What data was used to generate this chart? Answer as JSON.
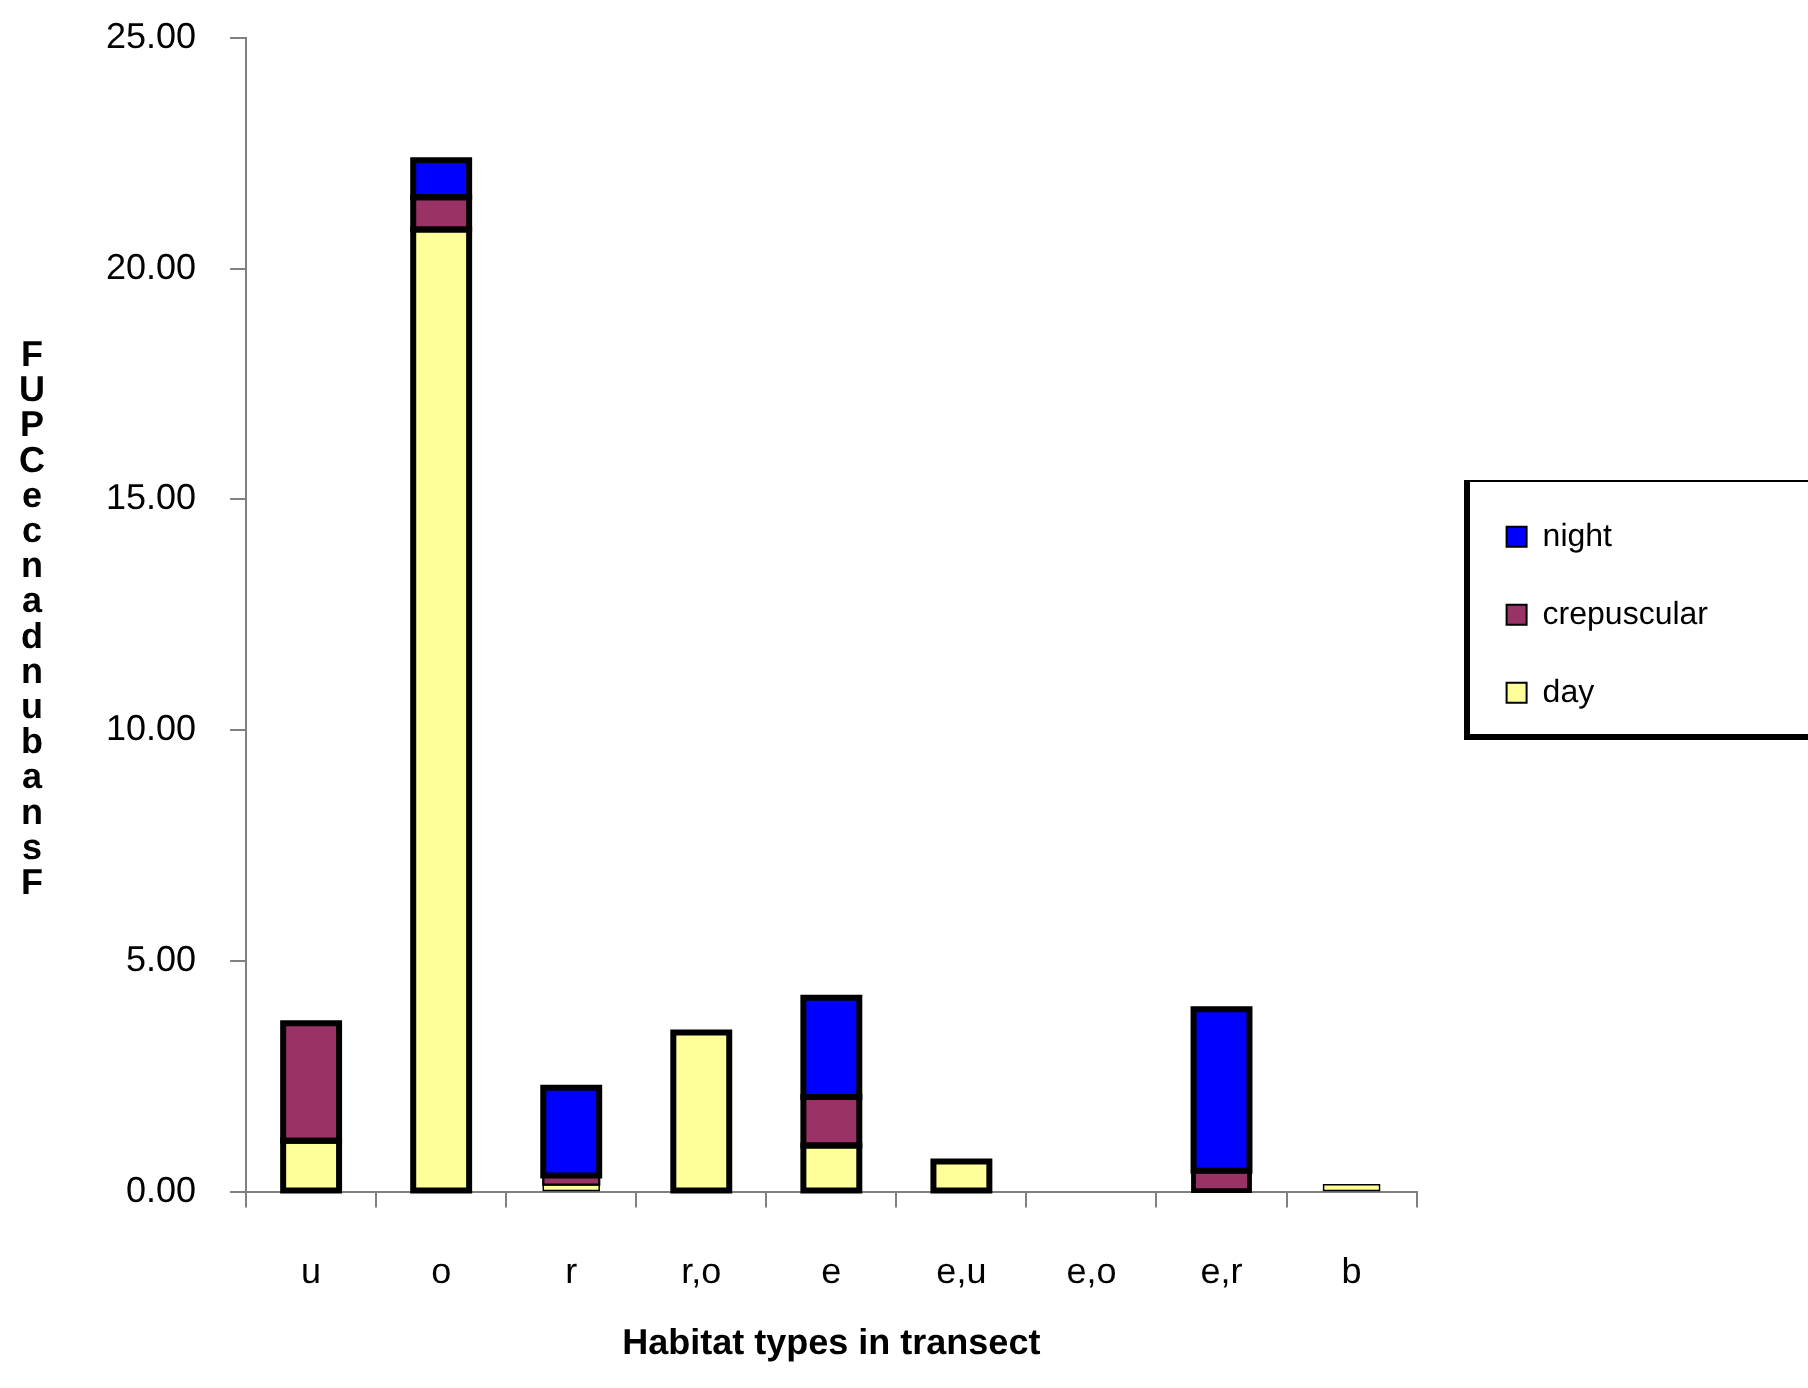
{
  "chart_data": {
    "type": "bar",
    "stacked": true,
    "categories": [
      "u",
      "o",
      "r",
      "r,o",
      "e",
      "e,u",
      "e,o",
      "e,r",
      "b"
    ],
    "series": [
      {
        "name": "day",
        "color": "#ffff99",
        "values": [
          1.1,
          20.85,
          0.15,
          3.45,
          1.0,
          0.65,
          null,
          null,
          0.15
        ]
      },
      {
        "name": "crepuscular",
        "color": "#993366",
        "values": [
          2.55,
          0.7,
          0.2,
          null,
          1.05,
          null,
          null,
          0.45,
          null
        ]
      },
      {
        "name": "night",
        "color": "#0000ff",
        "values": [
          null,
          0.8,
          1.9,
          null,
          2.15,
          null,
          null,
          3.5,
          null
        ]
      }
    ],
    "xlabel": "Habitat types in transect",
    "ylabel": "FUPCecnadnubansF",
    "ylim": [
      0,
      25
    ],
    "yticks": [
      {
        "value": 0,
        "label": "0.00"
      },
      {
        "value": 5,
        "label": "5.00"
      },
      {
        "value": 10,
        "label": "10.00"
      },
      {
        "value": 15,
        "label": "15.00"
      },
      {
        "value": 20,
        "label": "20.00"
      },
      {
        "value": 25,
        "label": "25.00"
      }
    ],
    "legend": "right"
  }
}
